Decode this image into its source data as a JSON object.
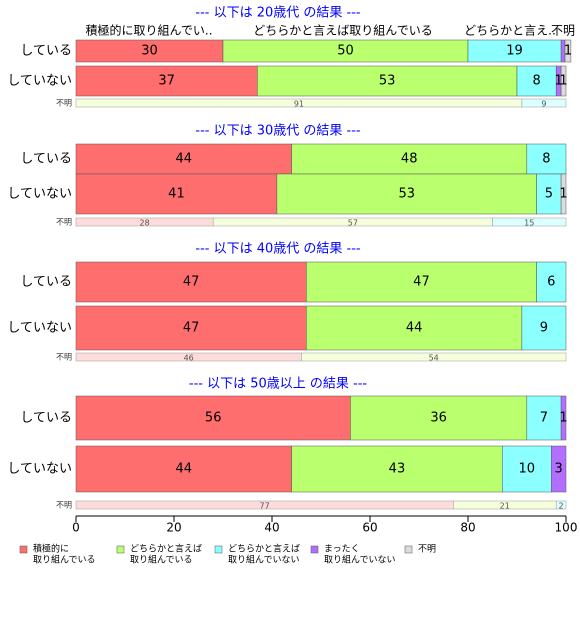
{
  "chart_data": {
    "type": "bar",
    "orientation": "horizontal",
    "stacked": true,
    "xlim": [
      0,
      100
    ],
    "x_ticks": [
      0,
      20,
      40,
      60,
      80,
      100
    ],
    "grid": false,
    "legend_position": "bottom",
    "header_labels": [
      "積極的に取り組んでい..",
      "どちらかと言えば取り組んでいる",
      "どちらかと言え..",
      "不明"
    ],
    "categories_legend": [
      {
        "label_lines": [
          "積極的に",
          "取り組んでいる"
        ],
        "color": "#ff6e6e"
      },
      {
        "label_lines": [
          "どちらかと言えば",
          "取り組んでいる"
        ],
        "color": "#b9ff6e"
      },
      {
        "label_lines": [
          "どちらかと言えば",
          "取り組んでいない"
        ],
        "color": "#8cffff"
      },
      {
        "label_lines": [
          "まったく",
          "取り組んでいない"
        ],
        "color": "#b46eff"
      },
      {
        "label_lines": [
          "不明"
        ],
        "color": "#dcdcdc"
      }
    ],
    "groups": [
      {
        "title": "--- 以下は 20歳代 の結果 ---",
        "rows": [
          {
            "label": "している",
            "values": [
              30,
              50,
              19,
              0.8,
              1.2
            ],
            "labels": [
              "30",
              "50",
              "19",
              "",
              "1"
            ]
          },
          {
            "label": "していない",
            "values": [
              37,
              53,
              8,
              1,
              1
            ],
            "labels": [
              "37",
              "53",
              "8",
              "1",
              "1"
            ]
          }
        ],
        "unknown": {
          "label": "不明",
          "values": [
            0,
            91,
            9
          ],
          "labels": [
            "",
            "91",
            "9"
          ]
        }
      },
      {
        "title": "--- 以下は 30歳代 の結果 ---",
        "rows": [
          {
            "label": "している",
            "values": [
              44,
              48,
              8,
              0,
              0
            ],
            "labels": [
              "44",
              "48",
              "8",
              "",
              ""
            ]
          },
          {
            "label": "していない",
            "values": [
              41,
              53,
              5,
              0,
              1
            ],
            "labels": [
              "41",
              "53",
              "5",
              "",
              "1"
            ]
          }
        ],
        "unknown": {
          "label": "不明",
          "values": [
            28,
            57,
            15
          ],
          "labels": [
            "28",
            "57",
            "15"
          ]
        }
      },
      {
        "title": "--- 以下は 40歳代 の結果 ---",
        "rows": [
          {
            "label": "している",
            "values": [
              47,
              47,
              6,
              0,
              0
            ],
            "labels": [
              "47",
              "47",
              "6",
              "",
              ""
            ]
          },
          {
            "label": "していない",
            "values": [
              47,
              44,
              9,
              0,
              0
            ],
            "labels": [
              "47",
              "44",
              "9",
              "",
              ""
            ]
          }
        ],
        "unknown": {
          "label": "不明",
          "values": [
            46,
            54,
            0
          ],
          "labels": [
            "46",
            "54",
            ""
          ]
        }
      },
      {
        "title": "--- 以下は 50歳以上 の結果 ---",
        "rows": [
          {
            "label": "している",
            "values": [
              56,
              36,
              7,
              1,
              0
            ],
            "labels": [
              "56",
              "36",
              "7",
              "1",
              ""
            ]
          },
          {
            "label": "していない",
            "values": [
              44,
              43,
              10,
              3,
              0
            ],
            "labels": [
              "44",
              "43",
              "10",
              "3",
              ""
            ]
          }
        ],
        "unknown": {
          "label": "不明",
          "values": [
            77,
            21,
            2
          ],
          "labels": [
            "77",
            "21",
            "2"
          ]
        }
      }
    ]
  }
}
